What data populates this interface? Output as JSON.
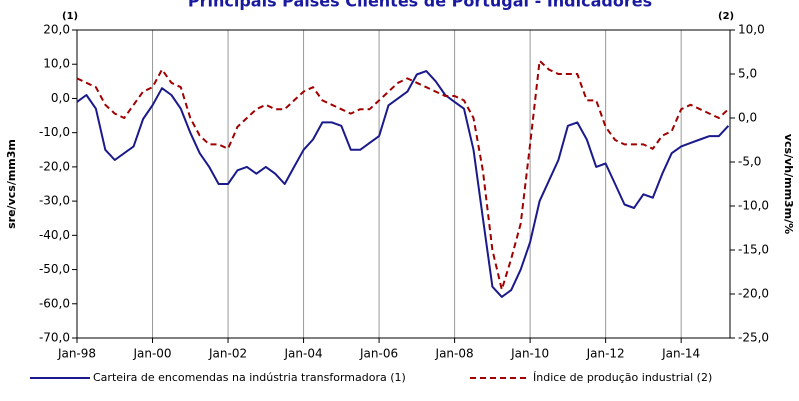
{
  "chart_data": {
    "type": "line",
    "title": "Principais Países Clientes de Portugal - Indicadores",
    "y_label": "sre/vcs/mm3m",
    "y2_label": "vcs/vh/mm3m/%",
    "annotations": [
      "(1)",
      "(2)"
    ],
    "categories": [
      "Jan-98",
      null,
      null,
      null,
      null,
      null,
      null,
      null,
      "Jan-00",
      null,
      null,
      null,
      null,
      null,
      null,
      null,
      "Jan-02",
      null,
      null,
      null,
      null,
      null,
      null,
      null,
      "Jan-04",
      null,
      null,
      null,
      null,
      null,
      null,
      null,
      "Jan-06",
      null,
      null,
      null,
      null,
      null,
      null,
      null,
      "Jan-08",
      null,
      null,
      null,
      null,
      null,
      null,
      null,
      "Jan-10",
      null,
      null,
      null,
      null,
      null,
      null,
      null,
      "Jan-12",
      null,
      null,
      null,
      null,
      null,
      null,
      null,
      "Jan-14",
      null,
      null,
      null,
      null,
      null
    ],
    "series": [
      {
        "name": "Carteira de encomendas na indústria transformadora (1)",
        "color": "#1a1a8c",
        "axis": "y",
        "values": [
          -1,
          1,
          -3,
          -15,
          -18,
          -16,
          -14,
          -6,
          -2,
          3,
          1,
          -3,
          -10,
          -16,
          -20,
          -25,
          -25,
          -21,
          -20,
          -22,
          -20,
          -22,
          -25,
          -20,
          -15,
          -12,
          -7,
          -7,
          -8,
          -15,
          -15,
          -13,
          -11,
          -2,
          0,
          2,
          7,
          8,
          5,
          1,
          -1,
          -3,
          -15,
          -35,
          -55,
          -58,
          -56,
          -50,
          -42,
          -30,
          -24,
          -18,
          -8,
          -7,
          -12,
          -20,
          -19,
          -25,
          -31,
          -32,
          -28,
          -29,
          -22,
          -16,
          -14,
          -13,
          -12,
          -11,
          -11,
          -8
        ]
      },
      {
        "name": "Índice de produção industrial (2)",
        "color": "#a00000",
        "axis": "y2",
        "values": [
          4.5,
          4,
          3.5,
          1.5,
          0.5,
          0,
          1.5,
          3,
          3.5,
          5.5,
          4,
          3.5,
          0,
          -2,
          -3,
          -3,
          -3.5,
          -1,
          0,
          1,
          1.5,
          1,
          1,
          2,
          3,
          3.5,
          2,
          1.5,
          1,
          0.5,
          1,
          1,
          2,
          3,
          4,
          4.5,
          4,
          3.5,
          3,
          2.5,
          2.5,
          2,
          0,
          -6,
          -15,
          -19.5,
          -16,
          -12,
          -3,
          6.5,
          5.5,
          5,
          5,
          5,
          2,
          2,
          -1,
          -2.5,
          -3,
          -3,
          -3,
          -3.5,
          -2,
          -1.5,
          1,
          1.5,
          1,
          0.5,
          0,
          1
        ]
      }
    ],
    "ylim": [
      -70,
      20
    ],
    "yticks": [
      {
        "value": -70,
        "label": "-70,0"
      },
      {
        "value": -60,
        "label": "-60,0"
      },
      {
        "value": -50,
        "label": "-50,0"
      },
      {
        "value": -40,
        "label": "-40,0"
      },
      {
        "value": -30,
        "label": "-30,0"
      },
      {
        "value": -20,
        "label": "-20,0"
      },
      {
        "value": -10,
        "label": "-10,0"
      },
      {
        "value": 0,
        "label": "0,0"
      },
      {
        "value": 10,
        "label": "10,0"
      },
      {
        "value": 20,
        "label": "20,0"
      }
    ],
    "y2lim": [
      -25,
      10
    ],
    "y2ticks": [
      {
        "value": -25,
        "label": "-25,0"
      },
      {
        "value": -20,
        "label": "-20,0"
      },
      {
        "value": -15,
        "label": "-15,0"
      },
      {
        "value": -10,
        "label": "-10,0"
      },
      {
        "value": -5,
        "label": "-5,0"
      },
      {
        "value": 0,
        "label": "0,0"
      },
      {
        "value": 5,
        "label": "5,0"
      },
      {
        "value": 10,
        "label": "10,0"
      }
    ],
    "grid": true
  }
}
